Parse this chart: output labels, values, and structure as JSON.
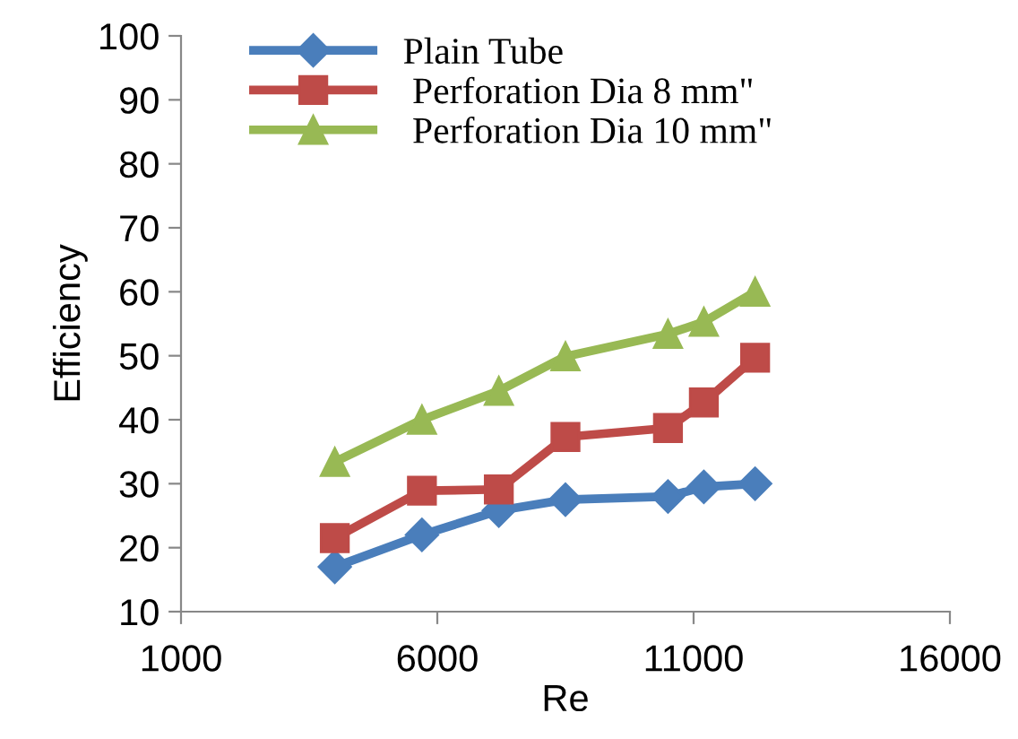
{
  "chart_data": {
    "type": "line",
    "xlabel": "Re",
    "ylabel": "Efficiency",
    "x": [
      4000,
      5700,
      7200,
      8500,
      10500,
      11200,
      12200
    ],
    "series": [
      {
        "name": "Plain Tube",
        "color": "#4a7ebb",
        "marker": "diamond",
        "values": [
          17,
          22,
          25.8,
          27.5,
          28,
          29.5,
          30
        ]
      },
      {
        "name": " Perforation Dia 8 mm\"",
        "color": "#be4b48",
        "marker": "square",
        "values": [
          21.5,
          28.9,
          29.1,
          37.3,
          38.7,
          42.7,
          49.7
        ]
      },
      {
        "name": " Perforation Dia 10 mm\"",
        "color": "#98b954",
        "marker": "triangle",
        "values": [
          33.4,
          40,
          44.5,
          49.9,
          53.4,
          55.3,
          60
        ]
      }
    ],
    "xlim": [
      1000,
      16000
    ],
    "xticks": [
      1000,
      6000,
      11000,
      16000
    ],
    "ylim": [
      10,
      100
    ],
    "yticks": [
      10,
      20,
      30,
      40,
      50,
      60,
      70,
      80,
      90,
      100
    ],
    "grid": false,
    "legend": "top left",
    "line_style": "solid"
  }
}
